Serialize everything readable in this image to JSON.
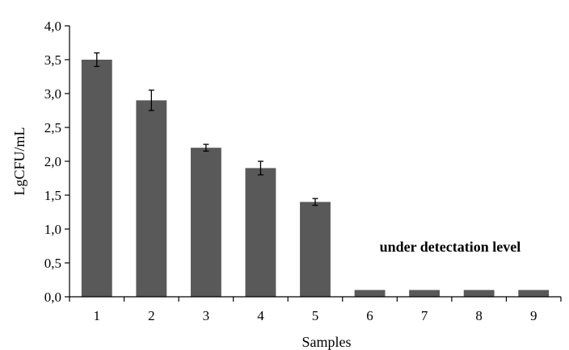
{
  "chart_data": {
    "type": "bar",
    "categories": [
      "1",
      "2",
      "3",
      "4",
      "5",
      "6",
      "7",
      "8",
      "9"
    ],
    "values": [
      3.5,
      2.9,
      2.2,
      1.9,
      1.4,
      0.1,
      0.1,
      0.1,
      0.1
    ],
    "errors": [
      0.1,
      0.15,
      0.05,
      0.1,
      0.05,
      null,
      null,
      null,
      null
    ],
    "xlabel": "Samples",
    "ylabel": "LgCFU/mL",
    "ylim": [
      0,
      4
    ],
    "yticks": [
      "0,0",
      "0,5",
      "1,0",
      "1,5",
      "2,0",
      "2,5",
      "3,0",
      "3,5",
      "4,0"
    ],
    "grid": false,
    "legend": "none",
    "bar_color": "#595959",
    "annotation": "under detectation level"
  }
}
